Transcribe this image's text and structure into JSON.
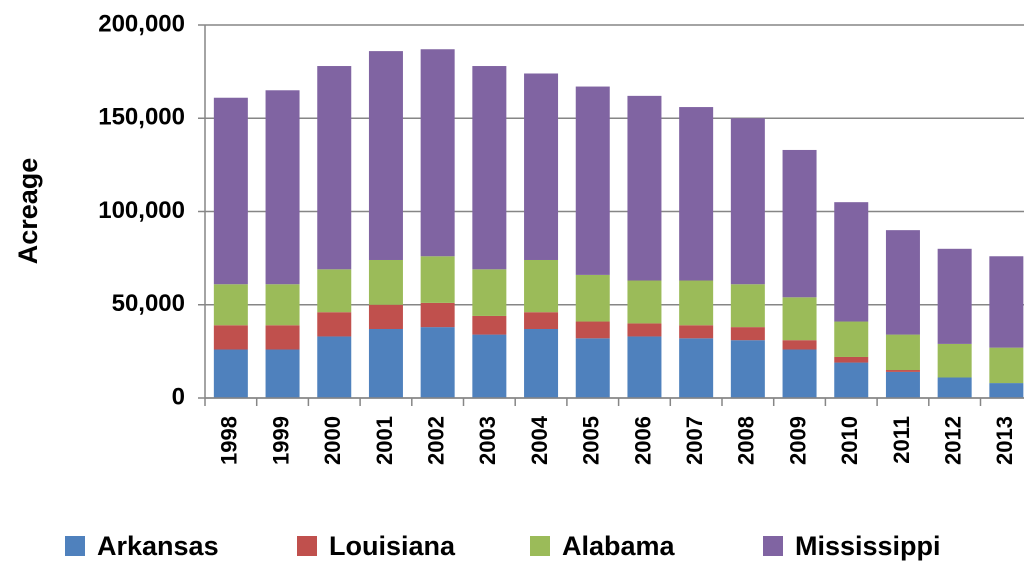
{
  "chart_data": {
    "type": "stacked_bar",
    "y_label": "Acreage",
    "categories": [
      "1998",
      "1999",
      "2000",
      "2001",
      "2002",
      "2003",
      "2004",
      "2005",
      "2006",
      "2007",
      "2008",
      "2009",
      "2010",
      "2011",
      "2012",
      "2013"
    ],
    "series": [
      {
        "name": "Arkansas",
        "color": "#4f81bd",
        "values": [
          26000,
          26000,
          33000,
          37000,
          38000,
          34000,
          37000,
          32000,
          33000,
          32000,
          31000,
          26000,
          19000,
          14000,
          11000,
          8000
        ]
      },
      {
        "name": "Louisiana",
        "color": "#c0504d",
        "values": [
          13000,
          13000,
          13000,
          13000,
          13000,
          10000,
          9000,
          9000,
          7000,
          7000,
          7000,
          5000,
          3000,
          1000,
          0,
          0
        ]
      },
      {
        "name": "Alabama",
        "color": "#9bbb59",
        "values": [
          22000,
          22000,
          23000,
          24000,
          25000,
          25000,
          28000,
          25000,
          23000,
          24000,
          23000,
          23000,
          19000,
          19000,
          18000,
          19000
        ]
      },
      {
        "name": "Mississippi",
        "color": "#8064a2",
        "values": [
          100000,
          104000,
          109000,
          112000,
          111000,
          109000,
          100000,
          101000,
          99000,
          93000,
          89000,
          79000,
          64000,
          56000,
          51000,
          49000
        ]
      }
    ],
    "ylim": [
      0,
      200000
    ],
    "yticks": [
      0,
      {
        "value": 50000,
        "label": "50,000"
      },
      {
        "value": 100000,
        "label": "100,000"
      },
      {
        "value": 150000,
        "label": "150,000"
      },
      {
        "value": 200000,
        "label": "200,000"
      }
    ],
    "grid": true,
    "legend": "bottom"
  }
}
